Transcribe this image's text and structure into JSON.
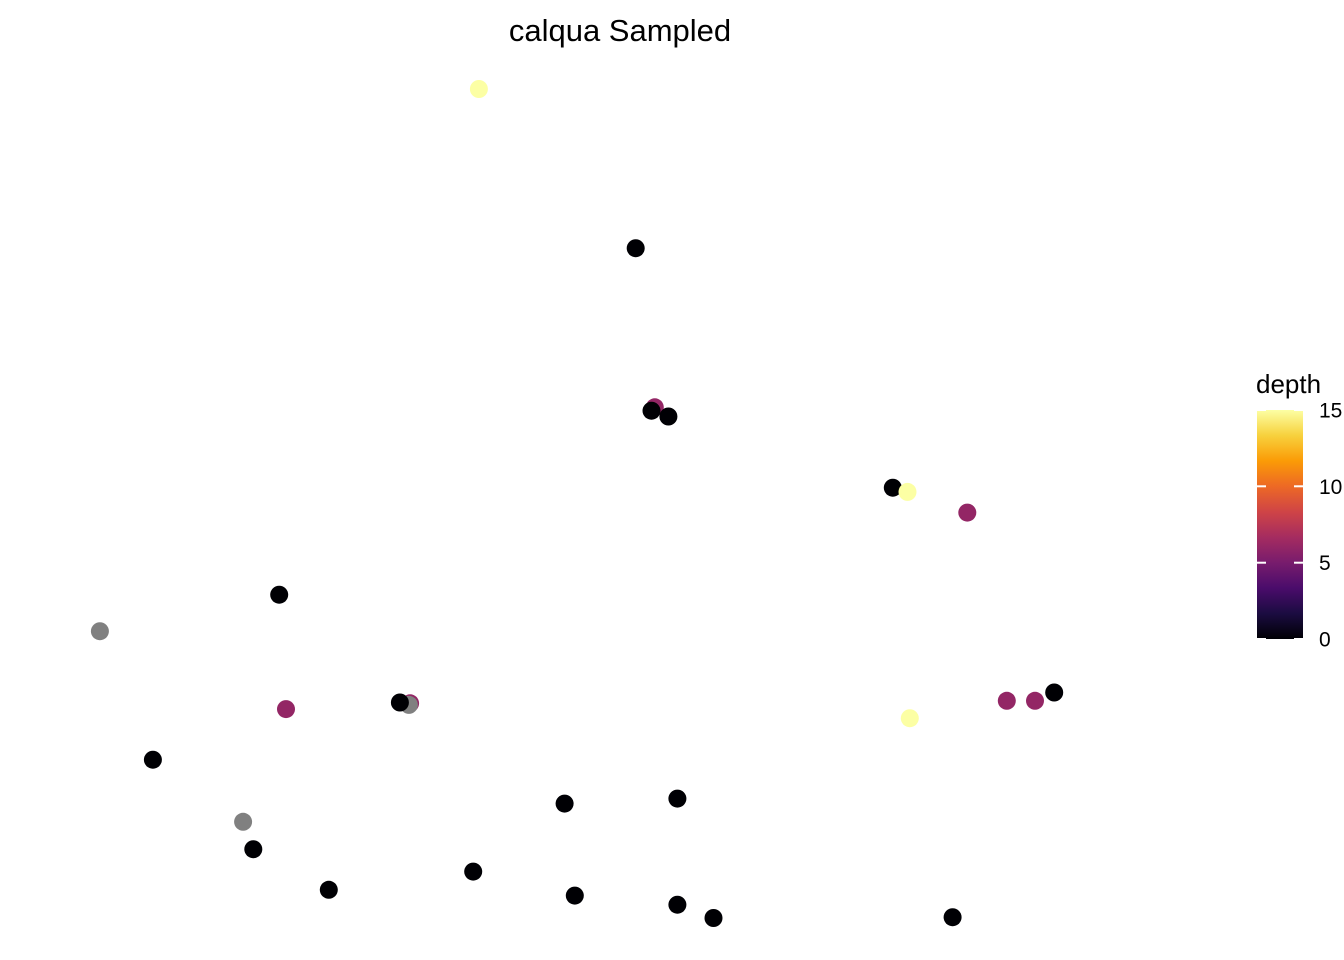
{
  "chart_data": {
    "type": "scatter",
    "title": "calqua Sampled",
    "xlabel": "",
    "ylabel": "",
    "axes_visible": false,
    "grid": false,
    "xlim": [
      0,
      100
    ],
    "ylim": [
      0,
      100
    ],
    "color_variable": "depth",
    "colorscale": {
      "name": "inferno",
      "stops": [
        "#000004",
        "#1b0c41",
        "#4a0c6b",
        "#781c6d",
        "#a52c60",
        "#cf4446",
        "#ed6925",
        "#fb9b06",
        "#f7d13d",
        "#fcffa4"
      ],
      "range": [
        0,
        15
      ],
      "ticks": [
        0,
        5,
        10,
        15
      ],
      "tick_labels": [
        "0",
        "5",
        "10",
        "15"
      ],
      "na_color": "#808080"
    },
    "legend": {
      "title": "depth",
      "placement": "right"
    },
    "points": [
      {
        "x": 37.4,
        "y": 100.0,
        "depth": 15
      },
      {
        "x": 51.3,
        "y": 80.8,
        "depth": 0
      },
      {
        "x": 53.0,
        "y": 61.6,
        "depth": 6
      },
      {
        "x": 52.7,
        "y": 61.2,
        "depth": 0
      },
      {
        "x": 54.2,
        "y": 60.5,
        "depth": 0
      },
      {
        "x": 74.1,
        "y": 51.9,
        "depth": 0
      },
      {
        "x": 75.4,
        "y": 51.4,
        "depth": 15
      },
      {
        "x": 80.7,
        "y": 48.9,
        "depth": 6
      },
      {
        "x": 19.7,
        "y": 39.0,
        "depth": 0
      },
      {
        "x": 3.8,
        "y": 34.6,
        "depth": null
      },
      {
        "x": 88.4,
        "y": 27.2,
        "depth": 0
      },
      {
        "x": 84.2,
        "y": 26.2,
        "depth": 6
      },
      {
        "x": 86.7,
        "y": 26.2,
        "depth": 6
      },
      {
        "x": 31.3,
        "y": 25.9,
        "depth": 6
      },
      {
        "x": 31.2,
        "y": 25.7,
        "depth": null
      },
      {
        "x": 30.4,
        "y": 26.0,
        "depth": 0
      },
      {
        "x": 20.3,
        "y": 25.2,
        "depth": 6
      },
      {
        "x": 75.6,
        "y": 24.1,
        "depth": 15
      },
      {
        "x": 8.5,
        "y": 19.1,
        "depth": 0
      },
      {
        "x": 55.0,
        "y": 14.4,
        "depth": 0
      },
      {
        "x": 45.0,
        "y": 13.8,
        "depth": 0
      },
      {
        "x": 16.5,
        "y": 11.6,
        "depth": null
      },
      {
        "x": 17.4,
        "y": 8.3,
        "depth": 0
      },
      {
        "x": 36.9,
        "y": 5.6,
        "depth": 0
      },
      {
        "x": 24.1,
        "y": 3.4,
        "depth": 0
      },
      {
        "x": 45.9,
        "y": 2.7,
        "depth": 0
      },
      {
        "x": 55.0,
        "y": 1.6,
        "depth": 0
      },
      {
        "x": 58.2,
        "y": 0.0,
        "depth": 0
      },
      {
        "x": 79.4,
        "y": 0.1,
        "depth": 0
      }
    ]
  }
}
